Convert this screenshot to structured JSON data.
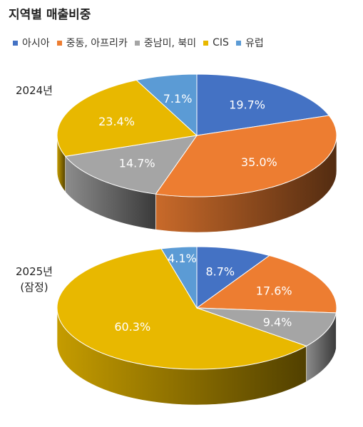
{
  "chart_data": [
    {
      "type": "pie",
      "title": "지역별 매출비중",
      "label": "2024년",
      "label_sub": "",
      "categories": [
        "아시아",
        "중동, 아프리카",
        "중남미, 북미",
        "CIS",
        "유럽"
      ],
      "values": [
        19.7,
        35.0,
        14.7,
        23.4,
        7.1
      ],
      "value_labels": [
        "19.7%",
        "35.0%",
        "14.7%",
        "23.4%",
        "7.1%"
      ],
      "legend": "top"
    },
    {
      "type": "pie",
      "title": "지역별 매출비중",
      "label": "2025년",
      "label_sub": "(잠정)",
      "categories": [
        "아시아",
        "중동, 아프리카",
        "중남미, 북미",
        "CIS",
        "유럽"
      ],
      "values": [
        8.7,
        17.6,
        9.4,
        60.3,
        4.1
      ],
      "value_labels": [
        "8.7%",
        "17.6%",
        "9.4%",
        "60.3%",
        "4.1%"
      ],
      "legend": "top"
    }
  ],
  "title": "지역별 매출비중",
  "legend": [
    {
      "label": "아시아",
      "color": "#4472C4"
    },
    {
      "label": "중동, 아프리카",
      "color": "#ED7D31"
    },
    {
      "label": "중남미, 북미",
      "color": "#A5A5A5"
    },
    {
      "label": "CIS",
      "color": "#E8B800"
    },
    {
      "label": "유럽",
      "color": "#5B9BD5"
    }
  ]
}
